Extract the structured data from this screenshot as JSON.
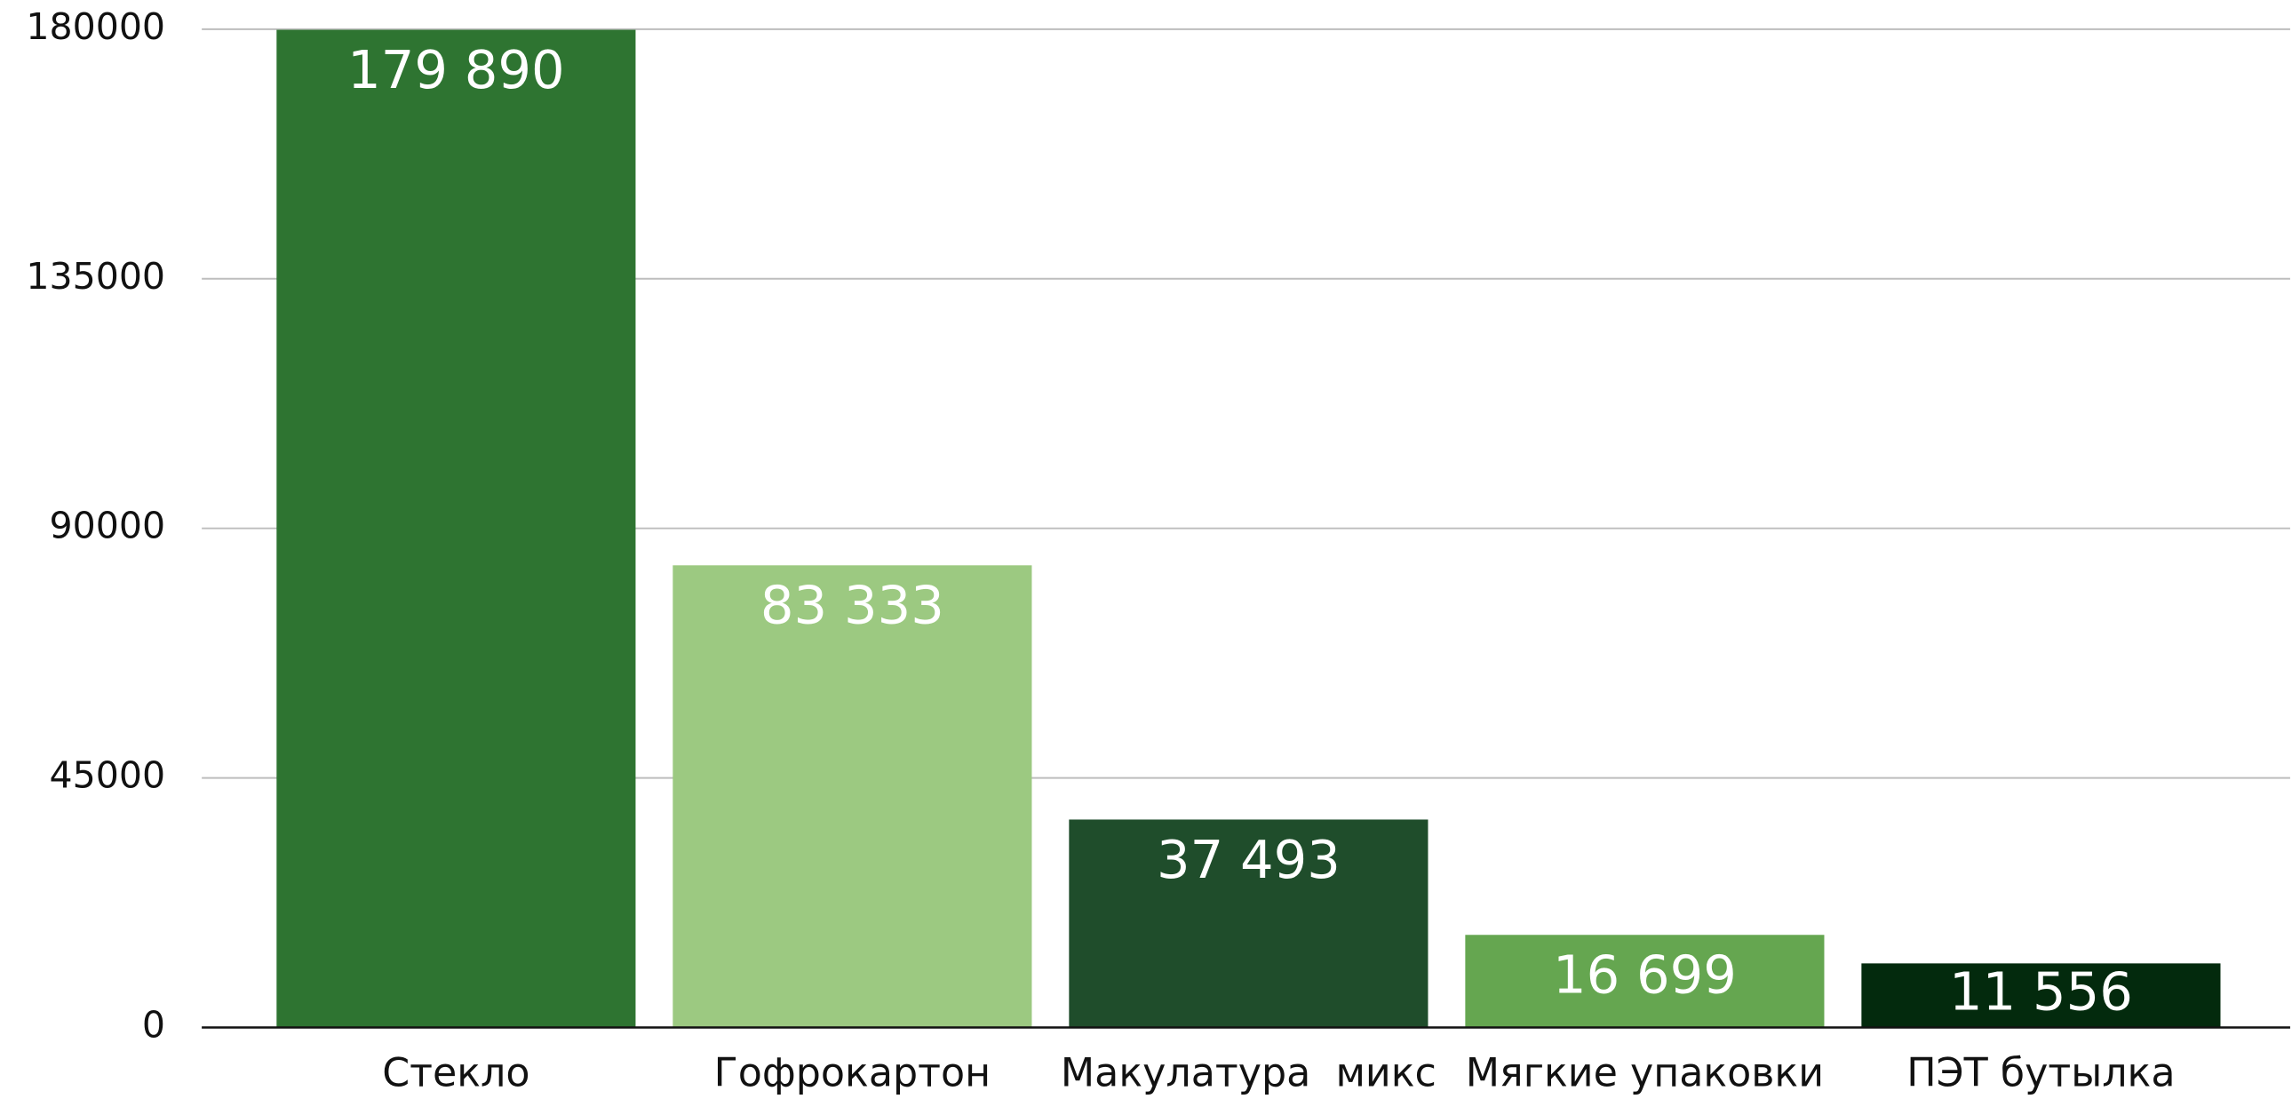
{
  "chart_data": {
    "type": "bar",
    "categories": [
      "Стекло",
      "Гофрокартон",
      "Макулатура  микс",
      "Мягкие упаковки",
      "ПЭТ бутылка"
    ],
    "values": [
      179890,
      83333,
      37493,
      16699,
      11556
    ],
    "value_labels": [
      "179 890",
      "83 333",
      "37 493",
      "16 699",
      "11 556"
    ],
    "colors": [
      "#2e7431",
      "#9cc981",
      "#1f4d2b",
      "#65a650",
      "#032a0d"
    ],
    "ylim": [
      0,
      180000
    ],
    "yticks": [
      0,
      45000,
      90000,
      135000,
      180000
    ],
    "grid": true
  }
}
